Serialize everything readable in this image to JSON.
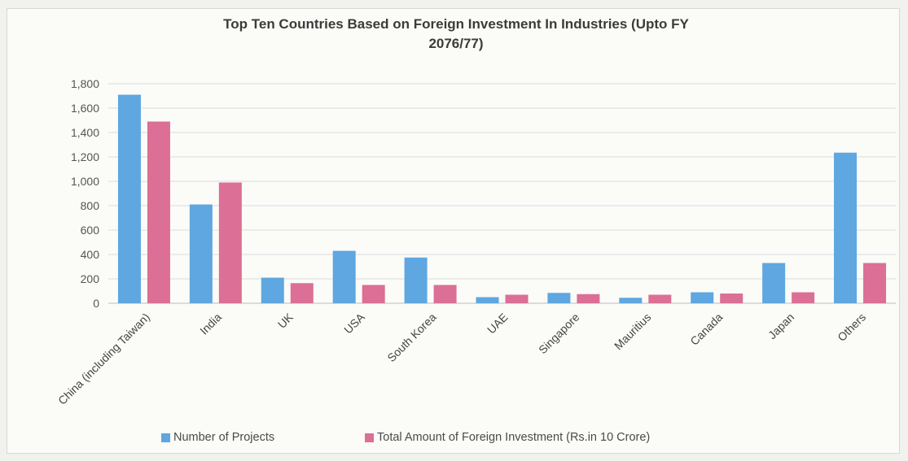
{
  "chart_data": {
    "type": "bar",
    "title_line1": "Top Ten Countries Based on Foreign Investment In Industries (Upto FY",
    "title_line2": "2076/77)",
    "categories": [
      "China (including Taiwan)",
      "India",
      "UK",
      "USA",
      "South Korea",
      "UAE",
      "Singapore",
      "Mauritius",
      "Canada",
      "Japan",
      "Others"
    ],
    "series": [
      {
        "name": "Number of Projects",
        "color": "#5ea7e0",
        "values": [
          1710,
          810,
          210,
          430,
          375,
          50,
          85,
          45,
          90,
          330,
          1235
        ]
      },
      {
        "name": "Total Amount of Foreign Investment (Rs.in 10 Crore)",
        "color": "#db6f95",
        "values": [
          1490,
          990,
          165,
          150,
          150,
          70,
          75,
          70,
          80,
          90,
          330
        ]
      }
    ],
    "yticks": [
      "0",
      "200",
      "400",
      "600",
      "800",
      "1,000",
      "1,200",
      "1,400",
      "1,600",
      "1,800"
    ],
    "ylim": [
      0,
      1800
    ],
    "grid": true,
    "legend_position": "bottom"
  }
}
